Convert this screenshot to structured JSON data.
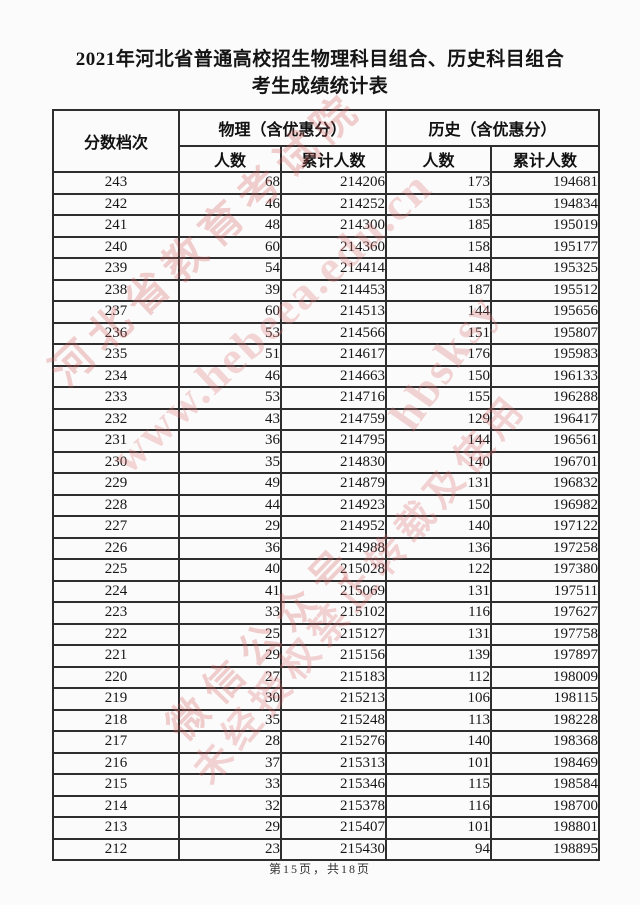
{
  "page": {
    "title_line1": "2021年河北省普通高校招生物理科目组合、历史科目组合",
    "title_line2": "考生成绩统计表",
    "footer": "第15页，共18页"
  },
  "watermark": {
    "color": "#d66464",
    "lines": [
      "河北省教育考试院",
      "www.hebeea.edu.cn",
      "微信公众号",
      "hbsksy",
      "未经授权禁止转载及使用"
    ]
  },
  "table": {
    "headers": {
      "score": "分数档次",
      "physics_group": "物理（含优惠分）",
      "history_group": "历史（含优惠分）",
      "count": "人数",
      "cumulative": "累计人数"
    },
    "rows": [
      [
        243,
        68,
        214206,
        173,
        194681
      ],
      [
        242,
        46,
        214252,
        153,
        194834
      ],
      [
        241,
        48,
        214300,
        185,
        195019
      ],
      [
        240,
        60,
        214360,
        158,
        195177
      ],
      [
        239,
        54,
        214414,
        148,
        195325
      ],
      [
        238,
        39,
        214453,
        187,
        195512
      ],
      [
        237,
        60,
        214513,
        144,
        195656
      ],
      [
        236,
        53,
        214566,
        151,
        195807
      ],
      [
        235,
        51,
        214617,
        176,
        195983
      ],
      [
        234,
        46,
        214663,
        150,
        196133
      ],
      [
        233,
        53,
        214716,
        155,
        196288
      ],
      [
        232,
        43,
        214759,
        129,
        196417
      ],
      [
        231,
        36,
        214795,
        144,
        196561
      ],
      [
        230,
        35,
        214830,
        140,
        196701
      ],
      [
        229,
        49,
        214879,
        131,
        196832
      ],
      [
        228,
        44,
        214923,
        150,
        196982
      ],
      [
        227,
        29,
        214952,
        140,
        197122
      ],
      [
        226,
        36,
        214988,
        136,
        197258
      ],
      [
        225,
        40,
        215028,
        122,
        197380
      ],
      [
        224,
        41,
        215069,
        131,
        197511
      ],
      [
        223,
        33,
        215102,
        116,
        197627
      ],
      [
        222,
        25,
        215127,
        131,
        197758
      ],
      [
        221,
        29,
        215156,
        139,
        197897
      ],
      [
        220,
        27,
        215183,
        112,
        198009
      ],
      [
        219,
        30,
        215213,
        106,
        198115
      ],
      [
        218,
        35,
        215248,
        113,
        198228
      ],
      [
        217,
        28,
        215276,
        140,
        198368
      ],
      [
        216,
        37,
        215313,
        101,
        198469
      ],
      [
        215,
        33,
        215346,
        115,
        198584
      ],
      [
        214,
        32,
        215378,
        116,
        198700
      ],
      [
        213,
        29,
        215407,
        101,
        198801
      ],
      [
        212,
        23,
        215430,
        94,
        198895
      ]
    ]
  }
}
